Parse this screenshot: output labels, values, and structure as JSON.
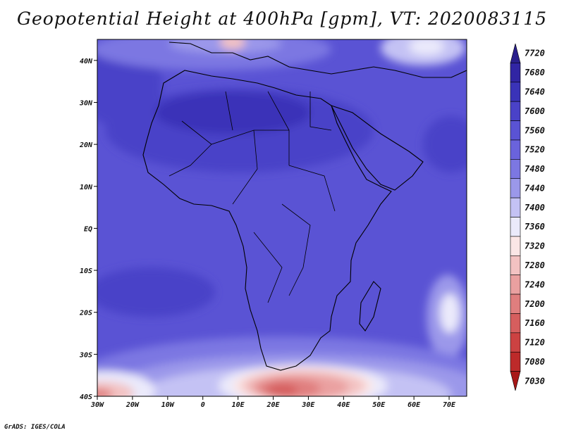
{
  "title": "Geopotential Height at 400hPa [gpm], VT: 2020083115",
  "credit": "GrADS: IGES/COLA",
  "map": {
    "lon_range": [
      -30,
      75
    ],
    "lat_range": [
      -40,
      45
    ],
    "lon_ticks": [
      {
        "value": -30,
        "label": "30W"
      },
      {
        "value": -20,
        "label": "20W"
      },
      {
        "value": -10,
        "label": "10W"
      },
      {
        "value": 0,
        "label": "0"
      },
      {
        "value": 10,
        "label": "10E"
      },
      {
        "value": 20,
        "label": "20E"
      },
      {
        "value": 30,
        "label": "30E"
      },
      {
        "value": 40,
        "label": "40E"
      },
      {
        "value": 50,
        "label": "50E"
      },
      {
        "value": 60,
        "label": "60E"
      },
      {
        "value": 70,
        "label": "70E"
      }
    ],
    "lat_ticks": [
      {
        "value": 40,
        "label": "40N"
      },
      {
        "value": 30,
        "label": "30N"
      },
      {
        "value": 20,
        "label": "20N"
      },
      {
        "value": 10,
        "label": "10N"
      },
      {
        "value": 0,
        "label": "EQ"
      },
      {
        "value": -10,
        "label": "10S"
      },
      {
        "value": -20,
        "label": "20S"
      },
      {
        "value": -30,
        "label": "30S"
      },
      {
        "value": -40,
        "label": "40S"
      }
    ]
  },
  "colorbar": {
    "levels": [
      "7720",
      "7680",
      "7640",
      "7600",
      "7560",
      "7520",
      "7480",
      "7440",
      "7400",
      "7360",
      "7320",
      "7280",
      "7240",
      "7200",
      "7160",
      "7120",
      "7080",
      "7030"
    ],
    "colors": [
      "#2a1f8c",
      "#3125a4",
      "#3a33b8",
      "#4a42c8",
      "#5a53d4",
      "#6a63dc",
      "#7c77e2",
      "#9b98ea",
      "#c4c2f4",
      "#ebeafb",
      "#fbe6e6",
      "#f3c2c2",
      "#eaa0a0",
      "#e07e7e",
      "#d65e5e",
      "#cc4242",
      "#bd2a2a",
      "#a81818"
    ]
  },
  "field_colors": {
    "background": "#5a53d4",
    "deep": "#4a42c8",
    "deeper": "#3a33b8",
    "light1": "#7c77e2",
    "light2": "#9b98ea",
    "light3": "#c4c2f4",
    "light4": "#ebeafb",
    "pink1": "#fbe6e6",
    "pink2": "#f3c2c2",
    "red1": "#eaa0a0",
    "red2": "#e07e7e",
    "red3": "#d65e5e"
  }
}
